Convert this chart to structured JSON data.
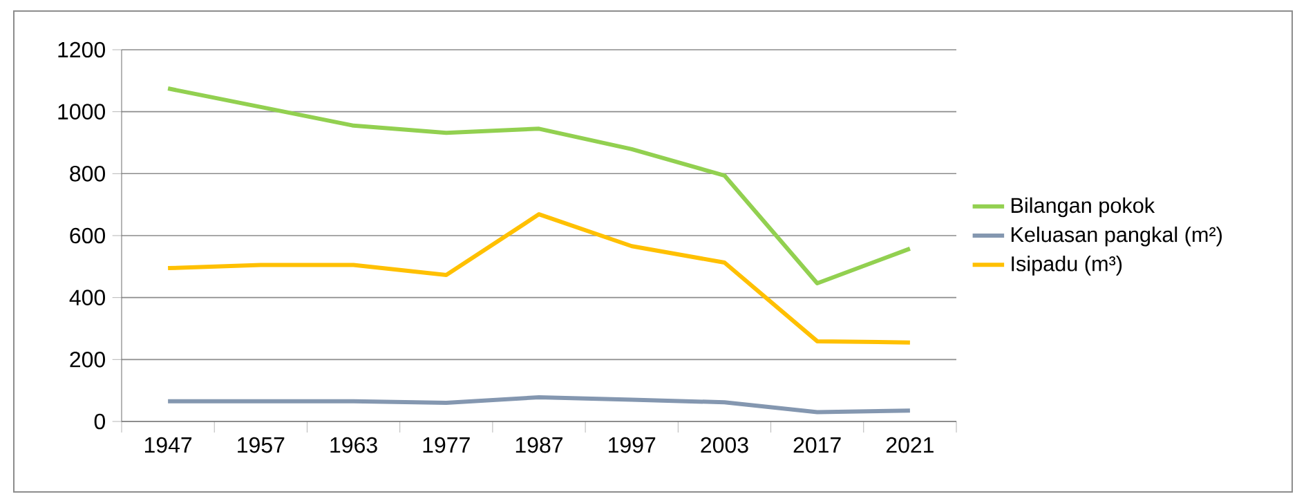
{
  "chart_data": {
    "type": "line",
    "categories": [
      "1947",
      "1957",
      "1963",
      "1977",
      "1987",
      "1997",
      "2003",
      "2017",
      "2021"
    ],
    "series": [
      {
        "name": "Bilangan pokok",
        "color": "#92d050",
        "values": [
          1075,
          1015,
          955,
          932,
          945,
          879,
          794,
          446,
          558
        ]
      },
      {
        "name": "Keluasan pangkal (m²)",
        "color": "#8497b0",
        "values": [
          65,
          65,
          65,
          60,
          78,
          70,
          62,
          30,
          35
        ]
      },
      {
        "name": "Isipadu (m³)",
        "color": "#ffc000",
        "values": [
          495,
          505,
          505,
          473,
          669,
          566,
          513,
          259,
          255
        ]
      }
    ],
    "ylim": [
      0,
      1200
    ],
    "yticks": [
      0,
      200,
      400,
      600,
      800,
      1000,
      1200
    ],
    "grid": "y",
    "legend": "right",
    "marker": "none",
    "line_style": "solid"
  }
}
